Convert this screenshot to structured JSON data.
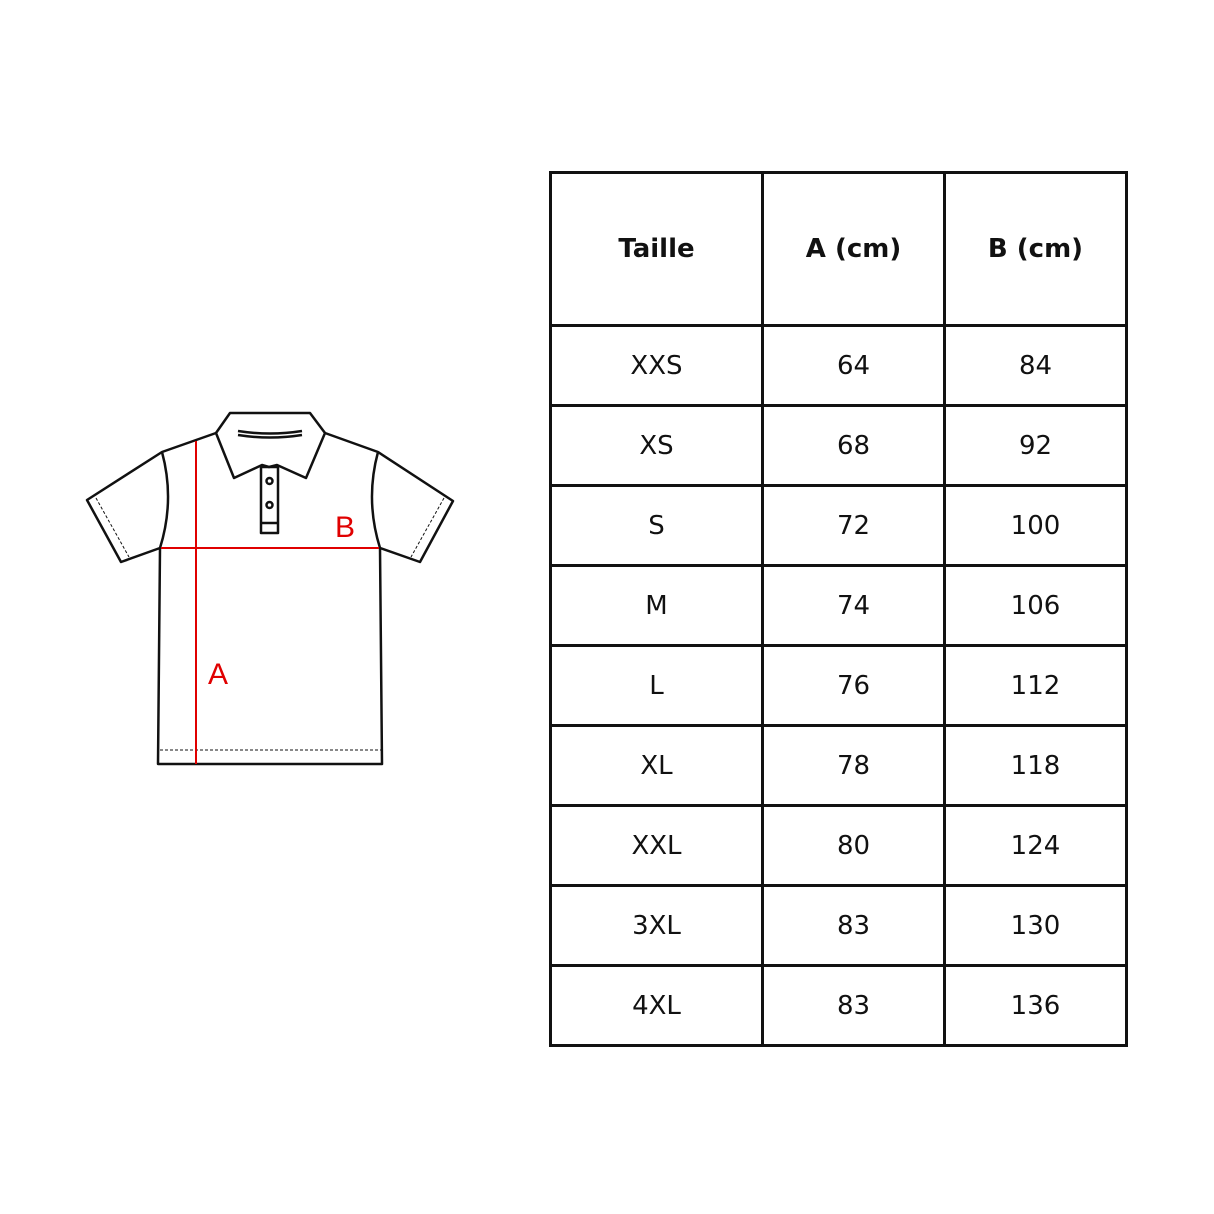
{
  "diagram": {
    "label_a": "A",
    "label_b": "B",
    "line_color": "#e00000",
    "outline_color": "#111111"
  },
  "table": {
    "headers": [
      "Taille",
      "A (cm)",
      "B (cm)"
    ],
    "rows": [
      [
        "XXS",
        "64",
        "84"
      ],
      [
        "XS",
        "68",
        "92"
      ],
      [
        "S",
        "72",
        "100"
      ],
      [
        "M",
        "74",
        "106"
      ],
      [
        "L",
        "76",
        "112"
      ],
      [
        "XL",
        "78",
        "118"
      ],
      [
        "XXL",
        "80",
        "124"
      ],
      [
        "3XL",
        "83",
        "130"
      ],
      [
        "4XL",
        "83",
        "136"
      ]
    ]
  }
}
